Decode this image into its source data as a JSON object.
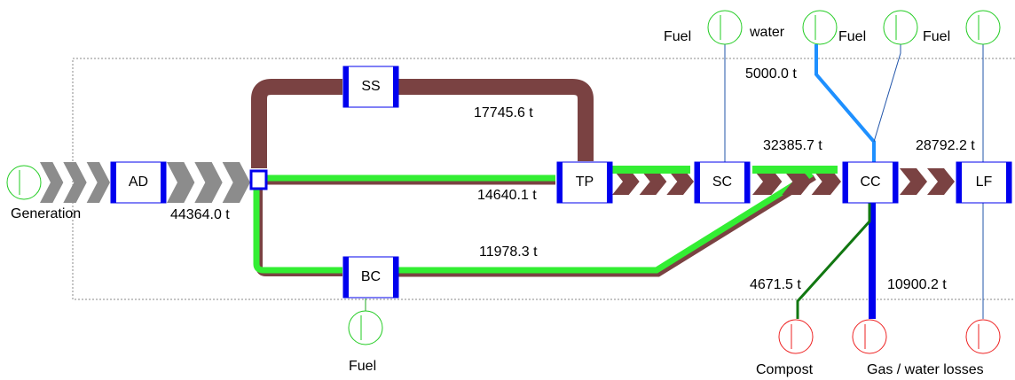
{
  "nodes": [
    {
      "label": "AD"
    },
    {
      "label": "SS"
    },
    {
      "label": "TP"
    },
    {
      "label": "SC"
    },
    {
      "label": "CC"
    },
    {
      "label": "LF"
    },
    {
      "label": "BC"
    }
  ],
  "sources": [
    {
      "label": "Generation"
    },
    {
      "label": "Fuel"
    },
    {
      "label": "water"
    },
    {
      "label": "Fuel"
    },
    {
      "label": "Fuel"
    },
    {
      "label": "Fuel"
    }
  ],
  "sinks": [
    {
      "label": "Compost"
    },
    {
      "label": "Gas / water losses"
    }
  ],
  "flows": [
    {
      "label": "44364.0 t"
    },
    {
      "label": "17745.6 t"
    },
    {
      "label": "14640.1 t"
    },
    {
      "label": "11978.3 t"
    },
    {
      "label": "32385.7 t"
    },
    {
      "label": "28792.2 t"
    },
    {
      "label": "5000.0 t"
    },
    {
      "label": "4671.5 t"
    },
    {
      "label": "10900.2 t"
    }
  ]
}
